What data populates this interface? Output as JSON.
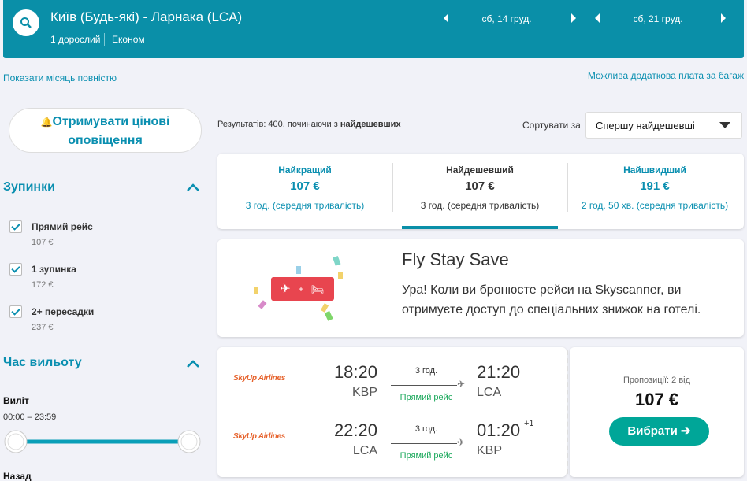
{
  "header": {
    "route": "Київ (Будь-які) - Ларнака (LCA)",
    "passengers": "1 дорослий",
    "cabin": "Економ",
    "depart_date": "сб, 14 груд.",
    "return_date": "сб, 21 груд."
  },
  "links": {
    "show_month": "Показати місяць повністю",
    "baggage_note": "Можлива додаткова плата за багаж"
  },
  "alerts_button": "Отримувати цінові оповіщення",
  "filters": {
    "stops": {
      "title": "Зупинки",
      "options": [
        {
          "label": "Прямий рейс",
          "price": "107 €"
        },
        {
          "label": "1 зупинка",
          "price": "172 €"
        },
        {
          "label": "2+ пересадки",
          "price": "237 €"
        }
      ]
    },
    "departure_time": {
      "title": "Час вильоту",
      "outbound_label": "Виліт",
      "outbound_range": "00:00 – 23:59",
      "return_label": "Назад"
    }
  },
  "results": {
    "summary_prefix": "Результатів: 400, починаючи з",
    "summary_bold": "найдешевших",
    "sort_label": "Сортувати за",
    "sort_value": "Спершу найдешевші"
  },
  "tabs": [
    {
      "title": "Найкращий",
      "price": "107 €",
      "duration": "3 год. (середня тривалість)"
    },
    {
      "title": "Найдешевший",
      "price": "107 €",
      "duration": "3 год. (середня тривалість)"
    },
    {
      "title": "Найшвидший",
      "price": "191 €",
      "duration": "2 год. 50 хв. (середня тривалість)"
    }
  ],
  "promo": {
    "title": "Fly Stay Save",
    "text": "Ура! Коли ви бронюєте рейси на Skyscanner, ви отримуєте доступ до спеціальних знижок на готелі."
  },
  "itinerary": {
    "legs": [
      {
        "airline": "SkyUp Airlines",
        "depart_time": "18:20",
        "depart_airport": "KBP",
        "duration": "3 год.",
        "stops": "Прямий рейс",
        "arrive_time": "21:20",
        "arrive_airport": "LCA",
        "day_offset": null
      },
      {
        "airline": "SkyUp Airlines",
        "depart_time": "22:20",
        "depart_airport": "LCA",
        "duration": "3 год.",
        "stops": "Прямий рейс",
        "arrive_time": "01:20",
        "arrive_airport": "KBP",
        "day_offset": "+1"
      }
    ],
    "offers": "Пропозиції: 2 від",
    "price": "107 €",
    "select": "Вибрати"
  }
}
